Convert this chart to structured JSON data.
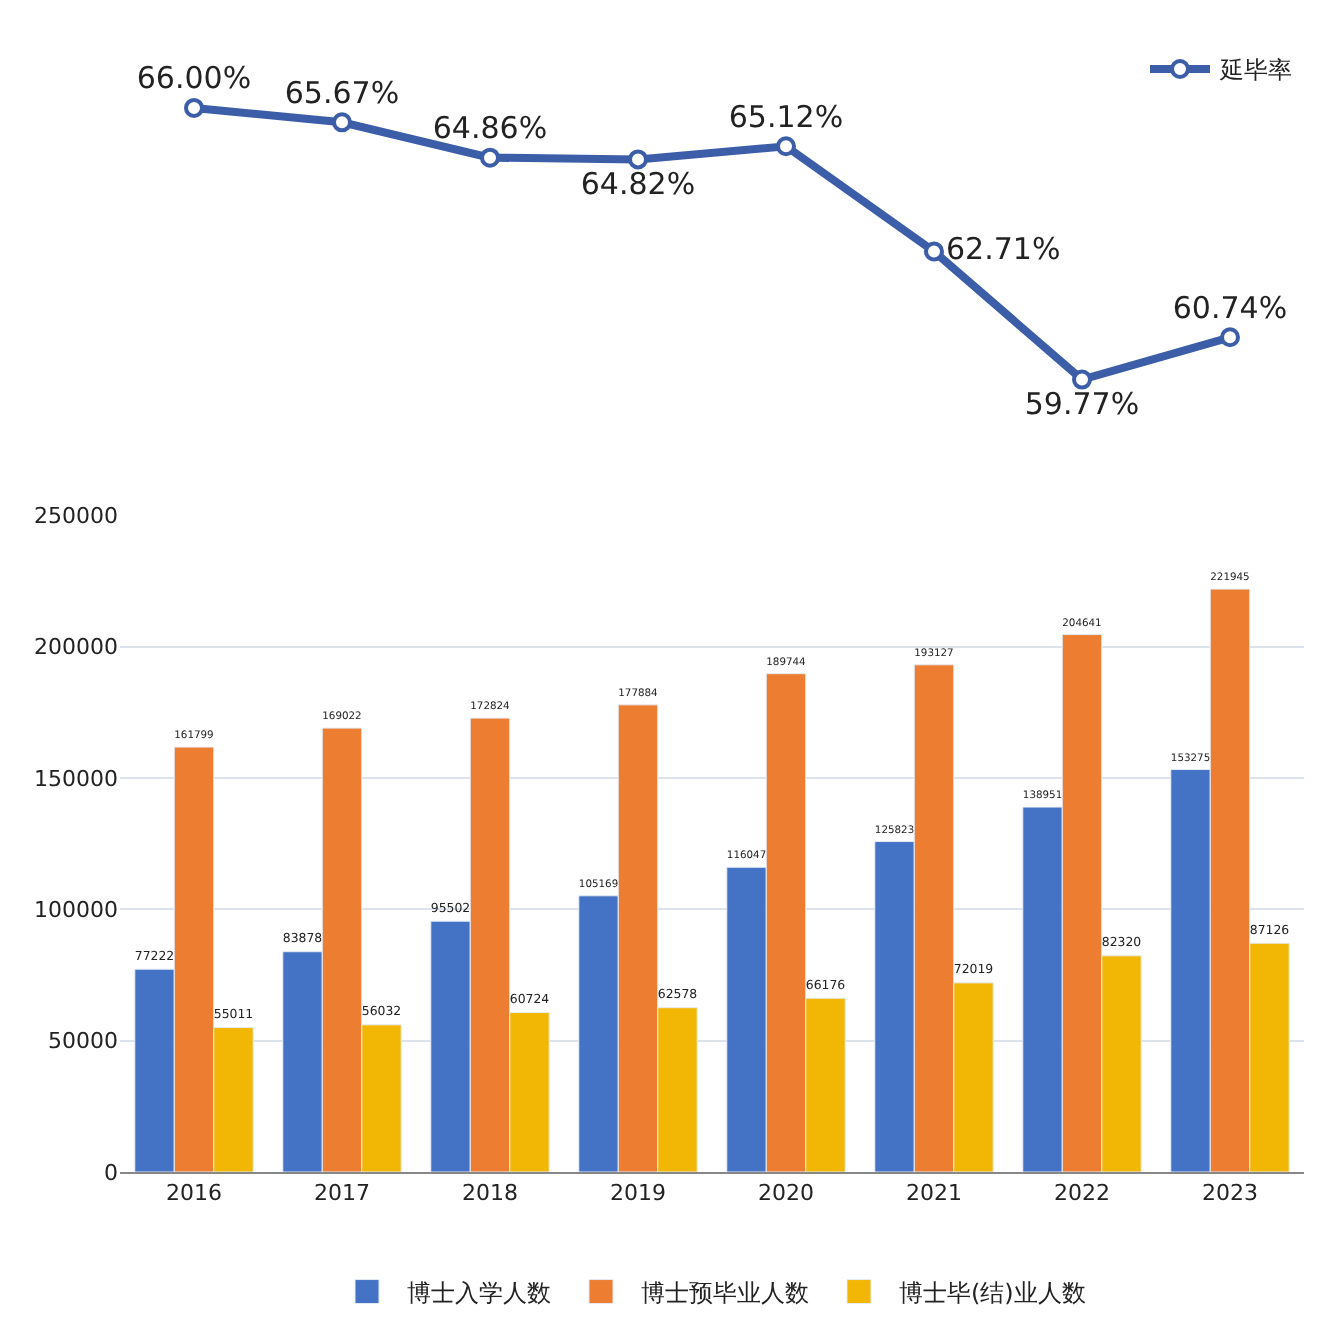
{
  "chart_data": [
    {
      "type": "line",
      "categories": [
        "2016",
        "2017",
        "2018",
        "2019",
        "2020",
        "2021",
        "2022",
        "2023"
      ],
      "tick_labels": false,
      "legend": "top right",
      "marker": "circle",
      "data_labels": true,
      "grid": false,
      "series": [
        {
          "name": "延毕率",
          "color": "#3c5ea8",
          "values": [
            66.0,
            65.67,
            64.86,
            64.82,
            65.12,
            62.71,
            59.77,
            60.74
          ],
          "value_labels": [
            "66.00%",
            "65.67%",
            "64.86%",
            "64.82%",
            "65.12%",
            "62.71%",
            "59.77%",
            "60.74%"
          ]
        }
      ]
    },
    {
      "type": "bar",
      "categories": [
        "2016",
        "2017",
        "2018",
        "2019",
        "2020",
        "2021",
        "2022",
        "2023"
      ],
      "ylim": [
        0,
        250000
      ],
      "yticks": [
        0,
        50000,
        100000,
        150000,
        200000,
        250000
      ],
      "grid": "y",
      "legend": "bottom",
      "data_labels": true,
      "series": [
        {
          "name": "博士入学人数",
          "color": "#4472c4",
          "values": [
            77222,
            83878,
            95502,
            105169,
            116047,
            125823,
            138951,
            153275
          ]
        },
        {
          "name": "博士预毕业人数",
          "color": "#ed7d31",
          "values": [
            161799,
            169022,
            172824,
            177884,
            189744,
            193127,
            204641,
            221945
          ]
        },
        {
          "name": "博士毕(结)业人数",
          "color": "#f2b705",
          "values": [
            55011,
            56032,
            60724,
            62578,
            66176,
            72019,
            82320,
            87126
          ]
        }
      ]
    }
  ]
}
